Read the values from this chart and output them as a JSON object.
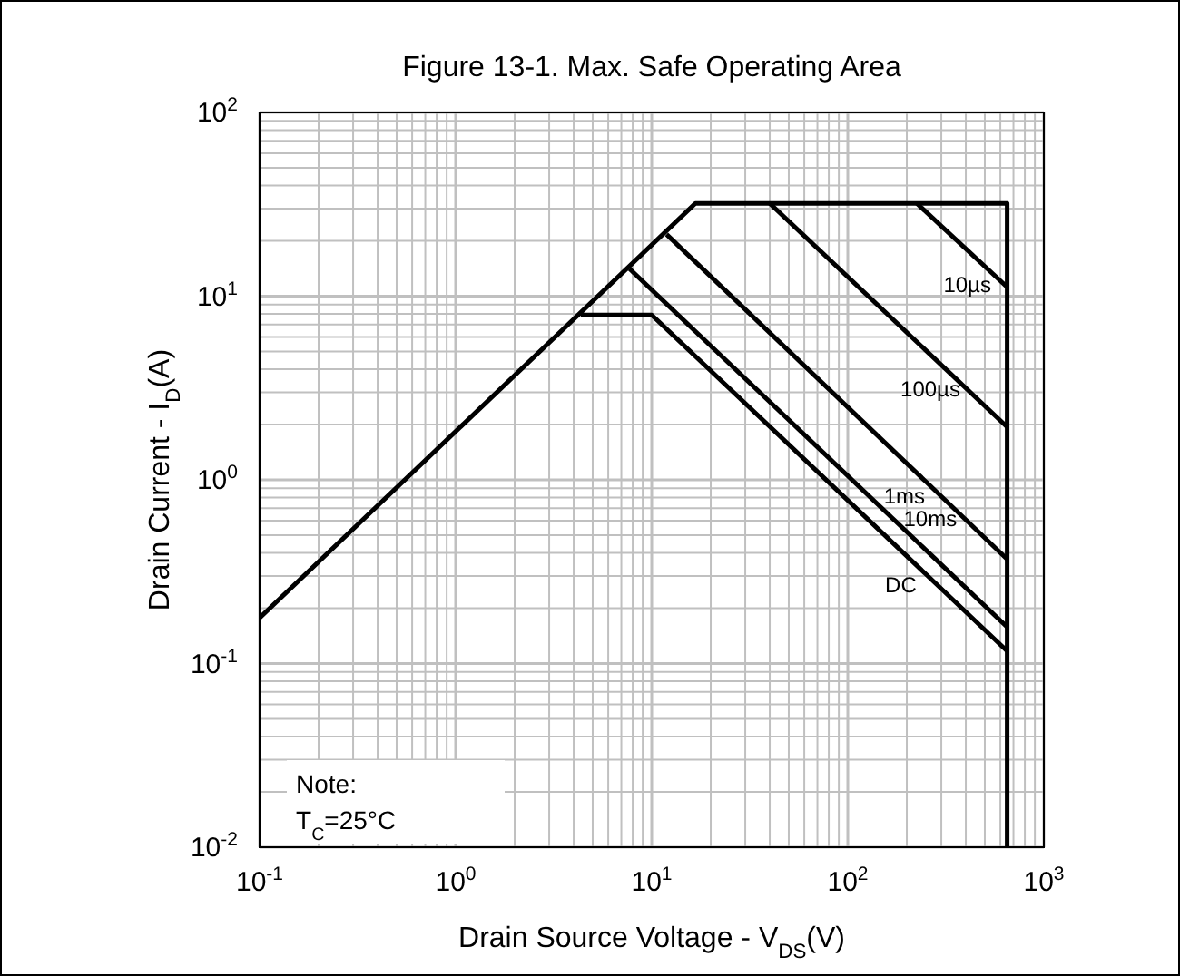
{
  "chart_data": {
    "type": "line",
    "title": "Figure 13-1. Max. Safe Operating Area",
    "xlabel": "Drain Source Voltage - V$_{DS}$(V)",
    "ylabel": "Drain Current - I$_{D}$(A)",
    "log": "xy",
    "xlim": [
      0.1,
      1000
    ],
    "ylim": [
      0.01,
      100
    ],
    "xticks": [
      {
        "value": 0.1,
        "label": "10$^{-1}$"
      },
      {
        "value": 1,
        "label": "10$^{0}$"
      },
      {
        "value": 10,
        "label": "10$^{1}$"
      },
      {
        "value": 100,
        "label": "10$^{2}$"
      },
      {
        "value": 1000,
        "label": "10$^{3}$"
      }
    ],
    "yticks": [
      {
        "value": 0.01,
        "label": "10$^{-2}$"
      },
      {
        "value": 0.1,
        "label": "10$^{-1}$"
      },
      {
        "value": 1,
        "label": "10$^{0}$"
      },
      {
        "value": 10,
        "label": "10$^{1}$"
      },
      {
        "value": 100,
        "label": "10$^{2}$"
      }
    ],
    "grid": true,
    "marker": "none",
    "line_style": "solid",
    "annotations": [
      "Note:",
      "T$_{C}$=25°C"
    ],
    "series": [
      {
        "color": "#000000",
        "x": [
          0.1,
          16.7,
          650,
          650
        ],
        "values": [
          0.177,
          32,
          32,
          0.01
        ]
      },
      {
        "name": "10µs",
        "color": "#000000",
        "x": [
          225,
          650
        ],
        "values": [
          32,
          11.2
        ]
      },
      {
        "name": "100µs",
        "color": "#000000",
        "x": [
          40,
          650
        ],
        "values": [
          32,
          1.94
        ]
      },
      {
        "name": "1ms",
        "color": "#000000",
        "x": [
          11.9,
          650
        ],
        "values": [
          21.7,
          0.37
        ]
      },
      {
        "name": "10ms",
        "color": "#000000",
        "x": [
          7.7,
          650
        ],
        "values": [
          14.1,
          0.158
        ]
      },
      {
        "name": "DC",
        "color": "#000000",
        "x": [
          4.35,
          10,
          650
        ],
        "values": [
          7.9,
          7.9,
          0.117
        ]
      }
    ]
  }
}
